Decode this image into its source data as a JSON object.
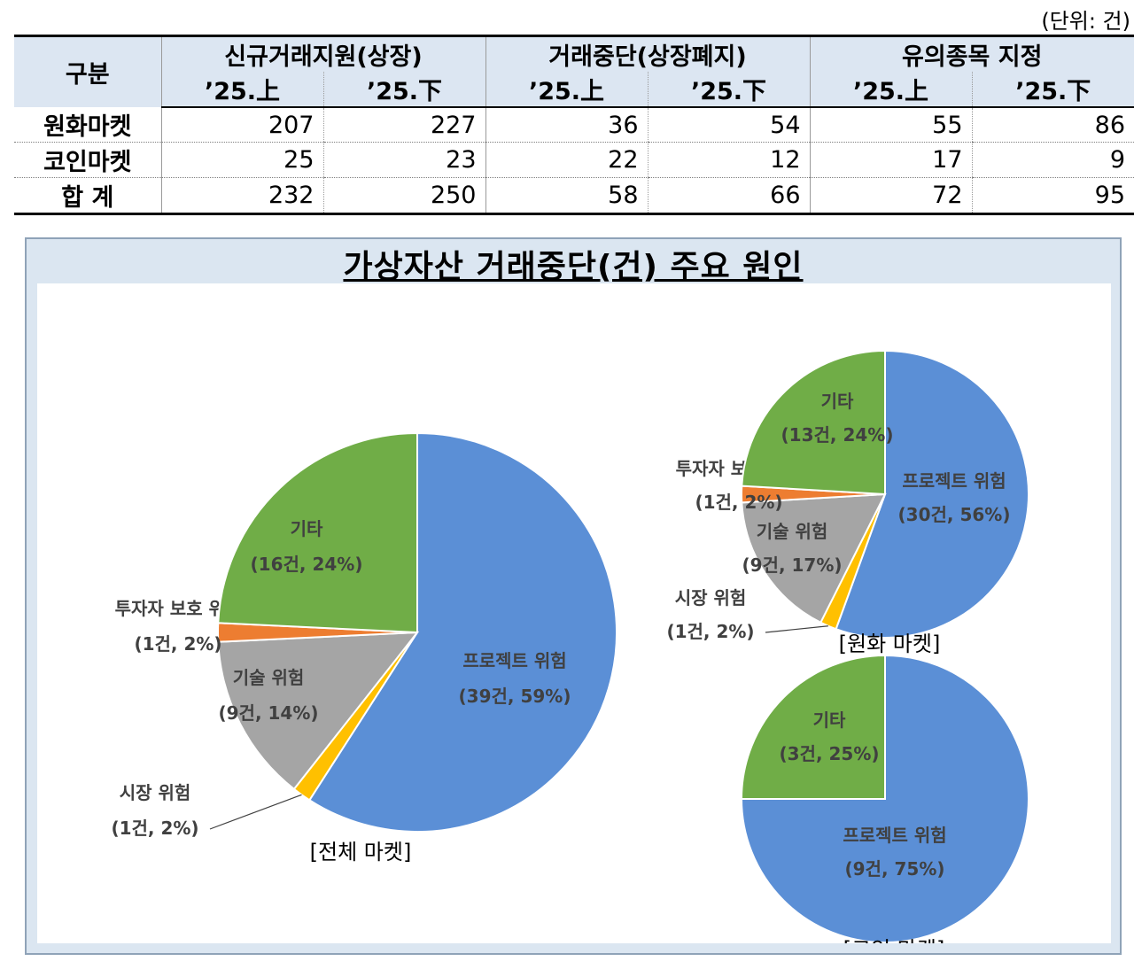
{
  "unit_label": "(단위:  건)",
  "table": {
    "corner_label": "구분",
    "groups": [
      "신규거래지원(상장)",
      "거래중단(상장폐지)",
      "유의종목 지정"
    ],
    "periods": [
      "’25.上",
      "’25.下",
      "’25.上",
      "’25.下",
      "’25.上",
      "’25.下"
    ],
    "rows": [
      {
        "label": "원화마켓",
        "values": [
          "207",
          "227",
          "36",
          "54",
          "55",
          "86"
        ]
      },
      {
        "label": "코인마켓",
        "values": [
          "25",
          "23",
          "22",
          "12",
          "17",
          "9"
        ]
      },
      {
        "label": "합 계",
        "values": [
          "232",
          "250",
          "58",
          "66",
          "72",
          "95"
        ]
      }
    ]
  },
  "panel_title": "가상자산 거래중단(건) 주요 원인",
  "colors": {
    "프로젝트 위험": "#5b8fd6",
    "시장 위험": "#ffc000",
    "기술 위험": "#a5a5a5",
    "투자자 보호 위험": "#ed7d31",
    "기타": "#70ad47"
  },
  "chart_data": [
    {
      "type": "pie",
      "title": "[전체 마켓]",
      "slices": [
        {
          "name": "프로젝트 위험",
          "value": 39,
          "label": "(39건, 59%)"
        },
        {
          "name": "시장 위험",
          "value": 1,
          "label": "(1건, 2%)"
        },
        {
          "name": "기술 위험",
          "value": 9,
          "label": "(9건, 14%)"
        },
        {
          "name": "투자자 보호 위험",
          "value": 1,
          "label": "(1건, 2%)"
        },
        {
          "name": "기타",
          "value": 16,
          "label": "(16건, 24%)"
        }
      ]
    },
    {
      "type": "pie",
      "title": "[원화 마켓]",
      "slices": [
        {
          "name": "프로젝트 위험",
          "value": 30,
          "label": "(30건, 56%)"
        },
        {
          "name": "시장 위험",
          "value": 1,
          "label": "(1건,  2%)"
        },
        {
          "name": "기술 위험",
          "value": 9,
          "label": "(9건, 17%)"
        },
        {
          "name": "투자자 보호 위험",
          "value": 1,
          "label": "(1건, 2%)"
        },
        {
          "name": "기타",
          "value": 13,
          "label": "(13건, 24%)"
        }
      ]
    },
    {
      "type": "pie",
      "title": "[코인 마켓]",
      "slices": [
        {
          "name": "프로젝트 위험",
          "value": 9,
          "label": "(9건, 75%)"
        },
        {
          "name": "기타",
          "value": 3,
          "label": "(3건, 25%)"
        }
      ]
    }
  ]
}
